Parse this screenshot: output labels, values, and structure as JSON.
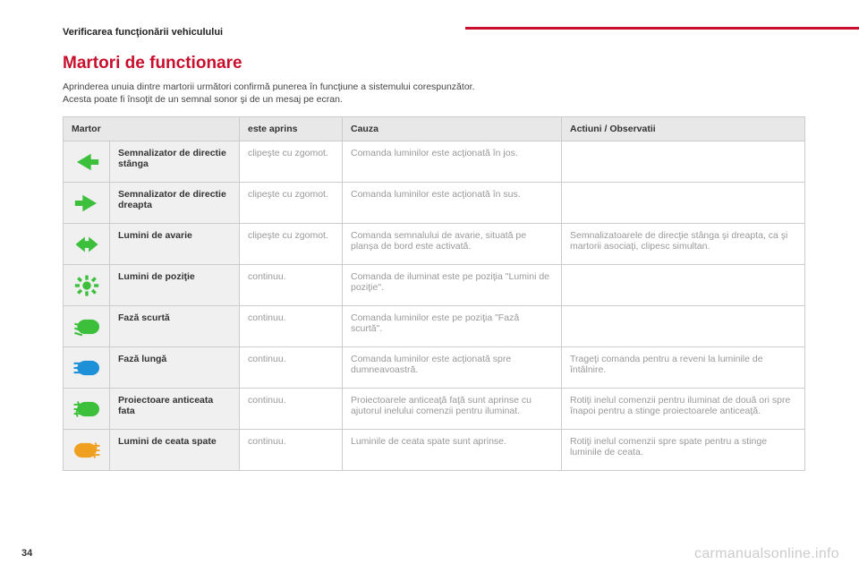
{
  "section_name": "Verificarea funcţionării vehiculului",
  "title": "Martori de functionare",
  "intro_line1": "Aprinderea unuia dintre martorii următori confirmă punerea în funcţiune a sistemului corespunzător.",
  "intro_line2": "Acesta poate fi însoţit de un semnal sonor şi de un mesaj pe ecran.",
  "headers": {
    "martor": "Martor",
    "aprins": "este aprins",
    "cauza": "Cauza",
    "actiuni": "Actiuni / Observatii"
  },
  "colors": {
    "green": "#3cc03c",
    "blue": "#1e90d8",
    "amber": "#f0a020",
    "header_red": "#c8102e",
    "row_bg": "#f0f0f0"
  },
  "rows": [
    {
      "icon": "arrow-left",
      "icon_color": "#3cc03c",
      "name": "Semnalizator de directie stânga",
      "lit": "clipeşte cu zgomot.",
      "cause": "Comanda luminilor este acţionată în jos.",
      "action": ""
    },
    {
      "icon": "arrow-right",
      "icon_color": "#3cc03c",
      "name": "Semnalizator de directie dreapta",
      "lit": "clipeşte cu zgomot.",
      "cause": "Comanda luminilor este acţionată în sus.",
      "action": ""
    },
    {
      "icon": "hazard",
      "icon_color": "#3cc03c",
      "name": "Lumini de avarie",
      "lit": "clipeşte cu zgomot.",
      "cause": "Comanda semnalului de avarie, situată pe planşa de bord este activată.",
      "action": "Semnalizatoarele de direcţie stânga şi dreapta, ca şi martorii asociaţi, clipesc simultan."
    },
    {
      "icon": "sidelights",
      "icon_color": "#3cc03c",
      "name": "Lumini de poziţie",
      "lit": "continuu.",
      "cause": "Comanda de iluminat este pe poziţia \"Lumini de poziţie\".",
      "action": ""
    },
    {
      "icon": "low-beam",
      "icon_color": "#3cc03c",
      "name": "Fază scurtă",
      "lit": "continuu.",
      "cause": "Comanda luminilor este pe poziţia \"Fază scurtă\".",
      "action": ""
    },
    {
      "icon": "high-beam",
      "icon_color": "#1e90d8",
      "name": "Fază lungă",
      "lit": "continuu.",
      "cause": "Comanda luminilor este acţionată spre dumneavoastră.",
      "action": "Trageţi comanda pentru a reveni la luminile de întâlnire."
    },
    {
      "icon": "front-fog",
      "icon_color": "#3cc03c",
      "name": "Proiectoare anticeata fata",
      "lit": "continuu.",
      "cause": "Proiectoarele anticeaţă faţă sunt aprinse cu ajutorul inelului comenzii pentru iluminat.",
      "action": "Rotiţi inelul comenzii pentru iluminat de două ori spre înapoi pentru a stinge proiectoarele anticeaţă."
    },
    {
      "icon": "rear-fog",
      "icon_color": "#f0a020",
      "name": "Lumini de ceata spate",
      "lit": "continuu.",
      "cause": "Luminile de ceata spate sunt aprinse.",
      "action": "Rotiţi inelul comenzii spre spate pentru a stinge luminile de ceata."
    }
  ],
  "page_number": "34",
  "watermark": "carmanualsonline.info"
}
